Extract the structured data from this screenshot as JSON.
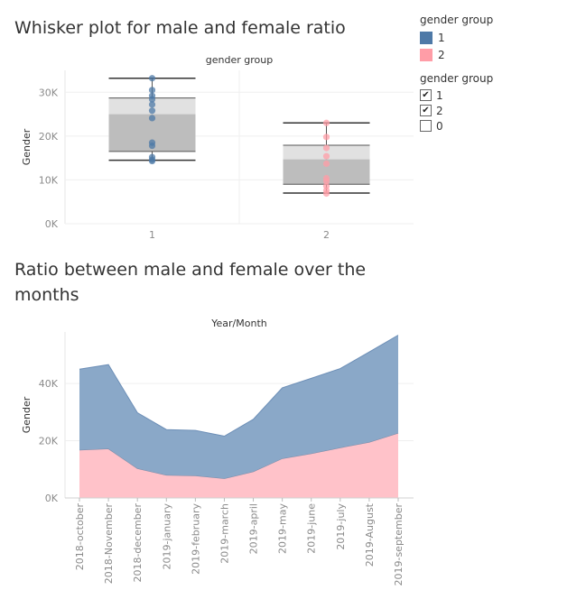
{
  "titles": {
    "box": "Whisker plot for male and female ratio",
    "area": "Ratio between male and female over the months"
  },
  "legend": {
    "title": "gender group",
    "items": [
      {
        "label": "1",
        "color": "#4e79a7"
      },
      {
        "label": "2",
        "color": "#ff9da7"
      }
    ]
  },
  "filter": {
    "title": "gender group",
    "items": [
      {
        "label": "1",
        "checked": true
      },
      {
        "label": "2",
        "checked": true
      },
      {
        "label": "0",
        "checked": false
      }
    ]
  },
  "chart_data": [
    {
      "type": "box",
      "title": "Whisker plot for male and female ratio",
      "header": "gender group",
      "ylabel": "Gender",
      "ylim": [
        0,
        35000
      ],
      "yticks": [
        0,
        10000,
        20000,
        30000
      ],
      "ytick_labels": [
        "0K",
        "10K",
        "20K",
        "30K"
      ],
      "categories": [
        "1",
        "2"
      ],
      "series": [
        {
          "name": "1",
          "color": "#4e79a7",
          "whisker_low": 14500,
          "q1": 16500,
          "median": 25000,
          "q3": 28700,
          "whisker_high": 33200,
          "points": [
            33200,
            30500,
            29200,
            28400,
            27200,
            25800,
            24100,
            18500,
            17800,
            15200,
            14600,
            14300
          ]
        },
        {
          "name": "2",
          "color": "#ff9da7",
          "whisker_low": 7000,
          "q1": 9000,
          "median": 14700,
          "q3": 17900,
          "whisker_high": 23000,
          "points": [
            23000,
            19800,
            17300,
            15400,
            13700,
            10400,
            9700,
            8600,
            7600,
            6900
          ]
        }
      ]
    },
    {
      "type": "area",
      "title": "Ratio between male and female over the months",
      "header": "Year/Month",
      "ylabel": "Gender",
      "stacked": true,
      "ylim": [
        0,
        58000
      ],
      "yticks": [
        0,
        20000,
        40000
      ],
      "ytick_labels": [
        "0K",
        "20K",
        "40K"
      ],
      "categories": [
        "2018-october",
        "2018-November",
        "2018-december",
        "2019-january",
        "2019-february",
        "2019-march",
        "2019-april",
        "2019-may",
        "2019-june",
        "2019-july",
        "2019-August",
        "2019-september"
      ],
      "series": [
        {
          "name": "2",
          "color": "#ff9da7",
          "values": [
            16800,
            17200,
            10300,
            8000,
            7800,
            6800,
            9200,
            13800,
            15500,
            17600,
            19500,
            22700
          ]
        },
        {
          "name": "1",
          "color": "#4e79a7",
          "values": [
            28200,
            29400,
            19500,
            15900,
            15800,
            14800,
            18300,
            24700,
            26300,
            27600,
            31500,
            34200
          ]
        }
      ]
    }
  ]
}
